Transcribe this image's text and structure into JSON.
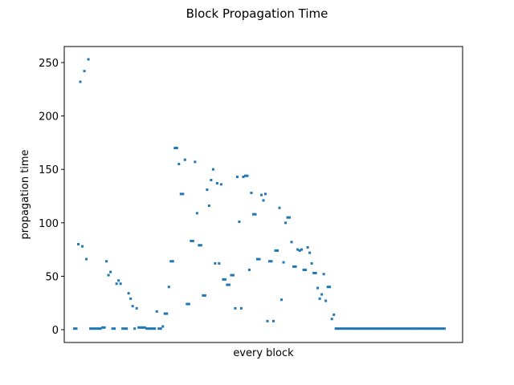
{
  "chart_data": {
    "type": "scatter",
    "title": "Block Propagation Time",
    "xlabel": "every block",
    "ylabel": "propagation time",
    "xlim": [
      -5,
      193
    ],
    "ylim": [
      -12,
      265
    ],
    "yticks": [
      0,
      50,
      100,
      150,
      200,
      250
    ],
    "grid": false,
    "marker_color": "#1f77b4",
    "series": [
      {
        "x": [
          0,
          1,
          2,
          3,
          4,
          5,
          6,
          7,
          8,
          9,
          10,
          11,
          12,
          13,
          14,
          15,
          16,
          17,
          18,
          19,
          20,
          21,
          22,
          23,
          24,
          25,
          26,
          27,
          28,
          29,
          30,
          31,
          32,
          33,
          34,
          35,
          36,
          37,
          38,
          39,
          40,
          41,
          42,
          43,
          44,
          45,
          46,
          47,
          48,
          49,
          50,
          51,
          52,
          53,
          54,
          55,
          56,
          57,
          58,
          59,
          60,
          61,
          62,
          63,
          64,
          65,
          66,
          67,
          68,
          69,
          70,
          71,
          72,
          73,
          74,
          75,
          76,
          77,
          78,
          79,
          80,
          81,
          82,
          83,
          84,
          85,
          86,
          87,
          88,
          89,
          90,
          91,
          92,
          93,
          94,
          95,
          96,
          97,
          98,
          99,
          100,
          101,
          102,
          103,
          104,
          105,
          106,
          107,
          108,
          109,
          110,
          111,
          112,
          113,
          114,
          115,
          116,
          117,
          118,
          119,
          120,
          121,
          122,
          123,
          124,
          125,
          126,
          127,
          128,
          129,
          130,
          131,
          132,
          133,
          134,
          135,
          136,
          137,
          138,
          139,
          140,
          141,
          142,
          143,
          144,
          145,
          146,
          147,
          148,
          149,
          150,
          151,
          152,
          153,
          154,
          155,
          156,
          157,
          158,
          159,
          160,
          161,
          162,
          163,
          164,
          165,
          166,
          167,
          168,
          169,
          170,
          171,
          172,
          173,
          174,
          175,
          176,
          177,
          178,
          179,
          180,
          181,
          182,
          183,
          184
        ],
        "y": [
          1,
          1,
          80,
          232,
          78,
          242,
          66,
          253,
          1,
          1,
          1,
          1,
          1,
          1,
          2,
          2,
          64,
          51,
          54,
          1,
          1,
          43,
          46,
          43,
          1,
          1,
          1,
          34,
          29,
          22,
          1,
          20,
          2,
          2,
          2,
          2,
          1,
          1,
          1,
          1,
          1,
          17,
          1,
          1,
          3,
          15,
          15,
          40,
          64,
          64,
          170,
          170,
          155,
          127,
          127,
          159,
          24,
          24,
          83,
          83,
          157,
          109,
          79,
          79,
          32,
          32,
          131,
          116,
          140,
          150,
          62,
          137,
          62,
          136,
          47,
          47,
          42,
          42,
          51,
          51,
          20,
          143,
          101,
          20,
          143,
          144,
          144,
          56,
          128,
          108,
          108,
          66,
          66,
          126,
          121,
          127,
          8,
          64,
          64,
          8,
          74,
          74,
          114,
          28,
          63,
          100,
          105,
          105,
          82,
          59,
          59,
          75,
          74,
          75,
          56,
          56,
          77,
          72,
          62,
          53,
          53,
          39,
          29,
          33,
          52,
          27,
          40,
          40,
          10,
          14,
          1,
          1,
          1,
          1,
          1,
          1,
          1,
          1,
          1,
          1,
          1,
          1,
          1,
          1,
          1,
          1,
          1,
          1,
          1,
          1,
          1,
          1,
          1,
          1,
          1,
          1,
          1,
          1,
          1,
          1,
          1,
          1,
          1,
          1,
          1,
          1,
          1,
          1,
          1,
          1,
          1,
          1,
          1,
          1,
          1,
          1,
          1,
          1,
          1,
          1,
          1,
          1,
          1,
          1,
          1
        ]
      }
    ]
  }
}
